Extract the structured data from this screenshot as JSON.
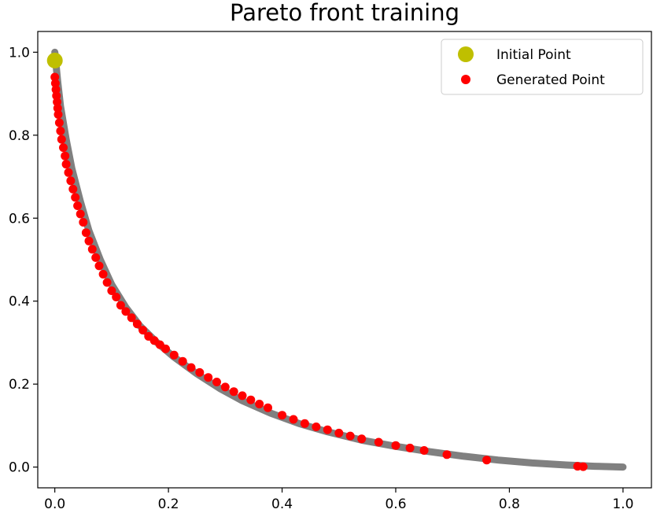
{
  "chart_data": {
    "type": "scatter",
    "title": "Pareto front training",
    "xlabel": "",
    "ylabel": "",
    "xlim": [
      -0.03,
      1.05
    ],
    "ylim": [
      -0.05,
      1.05
    ],
    "xticks": [
      "0.0",
      "0.2",
      "0.4",
      "0.6",
      "0.8",
      "1.0"
    ],
    "xtick_values": [
      0.0,
      0.2,
      0.4,
      0.6,
      0.8,
      1.0
    ],
    "yticks": [
      "0.0",
      "0.2",
      "0.4",
      "0.6",
      "0.8",
      "1.0"
    ],
    "ytick_values": [
      0.0,
      0.2,
      0.4,
      0.6,
      0.8,
      1.0
    ],
    "grid": false,
    "legend_position": "top-right",
    "front_curve": {
      "color": "#808080",
      "x": [
        0.0,
        0.005,
        0.01,
        0.02,
        0.03,
        0.045,
        0.06,
        0.08,
        0.1,
        0.125,
        0.15,
        0.18,
        0.21,
        0.25,
        0.29,
        0.33,
        0.38,
        0.43,
        0.48,
        0.54,
        0.6,
        0.66,
        0.72,
        0.78,
        0.84,
        0.9,
        0.95,
        1.0
      ],
      "y": [
        1.0,
        0.93,
        0.87,
        0.79,
        0.72,
        0.64,
        0.57,
        0.5,
        0.44,
        0.385,
        0.34,
        0.3,
        0.265,
        0.225,
        0.19,
        0.16,
        0.13,
        0.105,
        0.085,
        0.065,
        0.05,
        0.037,
        0.026,
        0.017,
        0.01,
        0.005,
        0.002,
        0.0
      ]
    },
    "series": [
      {
        "name": "Initial Point",
        "color": "#bfbf00",
        "x": [
          0.0
        ],
        "y": [
          0.98
        ]
      },
      {
        "name": "Generated Point",
        "color": "#ff0000",
        "x": [
          0.0,
          0.001,
          0.002,
          0.003,
          0.004,
          0.005,
          0.006,
          0.008,
          0.01,
          0.012,
          0.015,
          0.018,
          0.02,
          0.024,
          0.028,
          0.032,
          0.036,
          0.04,
          0.045,
          0.05,
          0.055,
          0.06,
          0.066,
          0.072,
          0.078,
          0.085,
          0.092,
          0.1,
          0.108,
          0.116,
          0.125,
          0.135,
          0.145,
          0.155,
          0.165,
          0.175,
          0.185,
          0.195,
          0.21,
          0.225,
          0.24,
          0.255,
          0.27,
          0.285,
          0.3,
          0.315,
          0.33,
          0.345,
          0.36,
          0.375,
          0.4,
          0.42,
          0.44,
          0.46,
          0.48,
          0.5,
          0.52,
          0.54,
          0.57,
          0.6,
          0.625,
          0.65,
          0.69,
          0.76,
          0.92,
          0.93
        ],
        "y": [
          0.94,
          0.925,
          0.91,
          0.895,
          0.88,
          0.865,
          0.85,
          0.83,
          0.81,
          0.79,
          0.77,
          0.75,
          0.73,
          0.71,
          0.69,
          0.67,
          0.65,
          0.63,
          0.61,
          0.59,
          0.565,
          0.545,
          0.525,
          0.505,
          0.485,
          0.465,
          0.445,
          0.425,
          0.41,
          0.39,
          0.375,
          0.36,
          0.345,
          0.33,
          0.315,
          0.305,
          0.295,
          0.285,
          0.27,
          0.255,
          0.24,
          0.228,
          0.216,
          0.205,
          0.193,
          0.182,
          0.172,
          0.162,
          0.152,
          0.143,
          0.125,
          0.115,
          0.105,
          0.097,
          0.09,
          0.082,
          0.075,
          0.068,
          0.06,
          0.052,
          0.046,
          0.04,
          0.03,
          0.017,
          0.002,
          0.001
        ]
      }
    ]
  }
}
